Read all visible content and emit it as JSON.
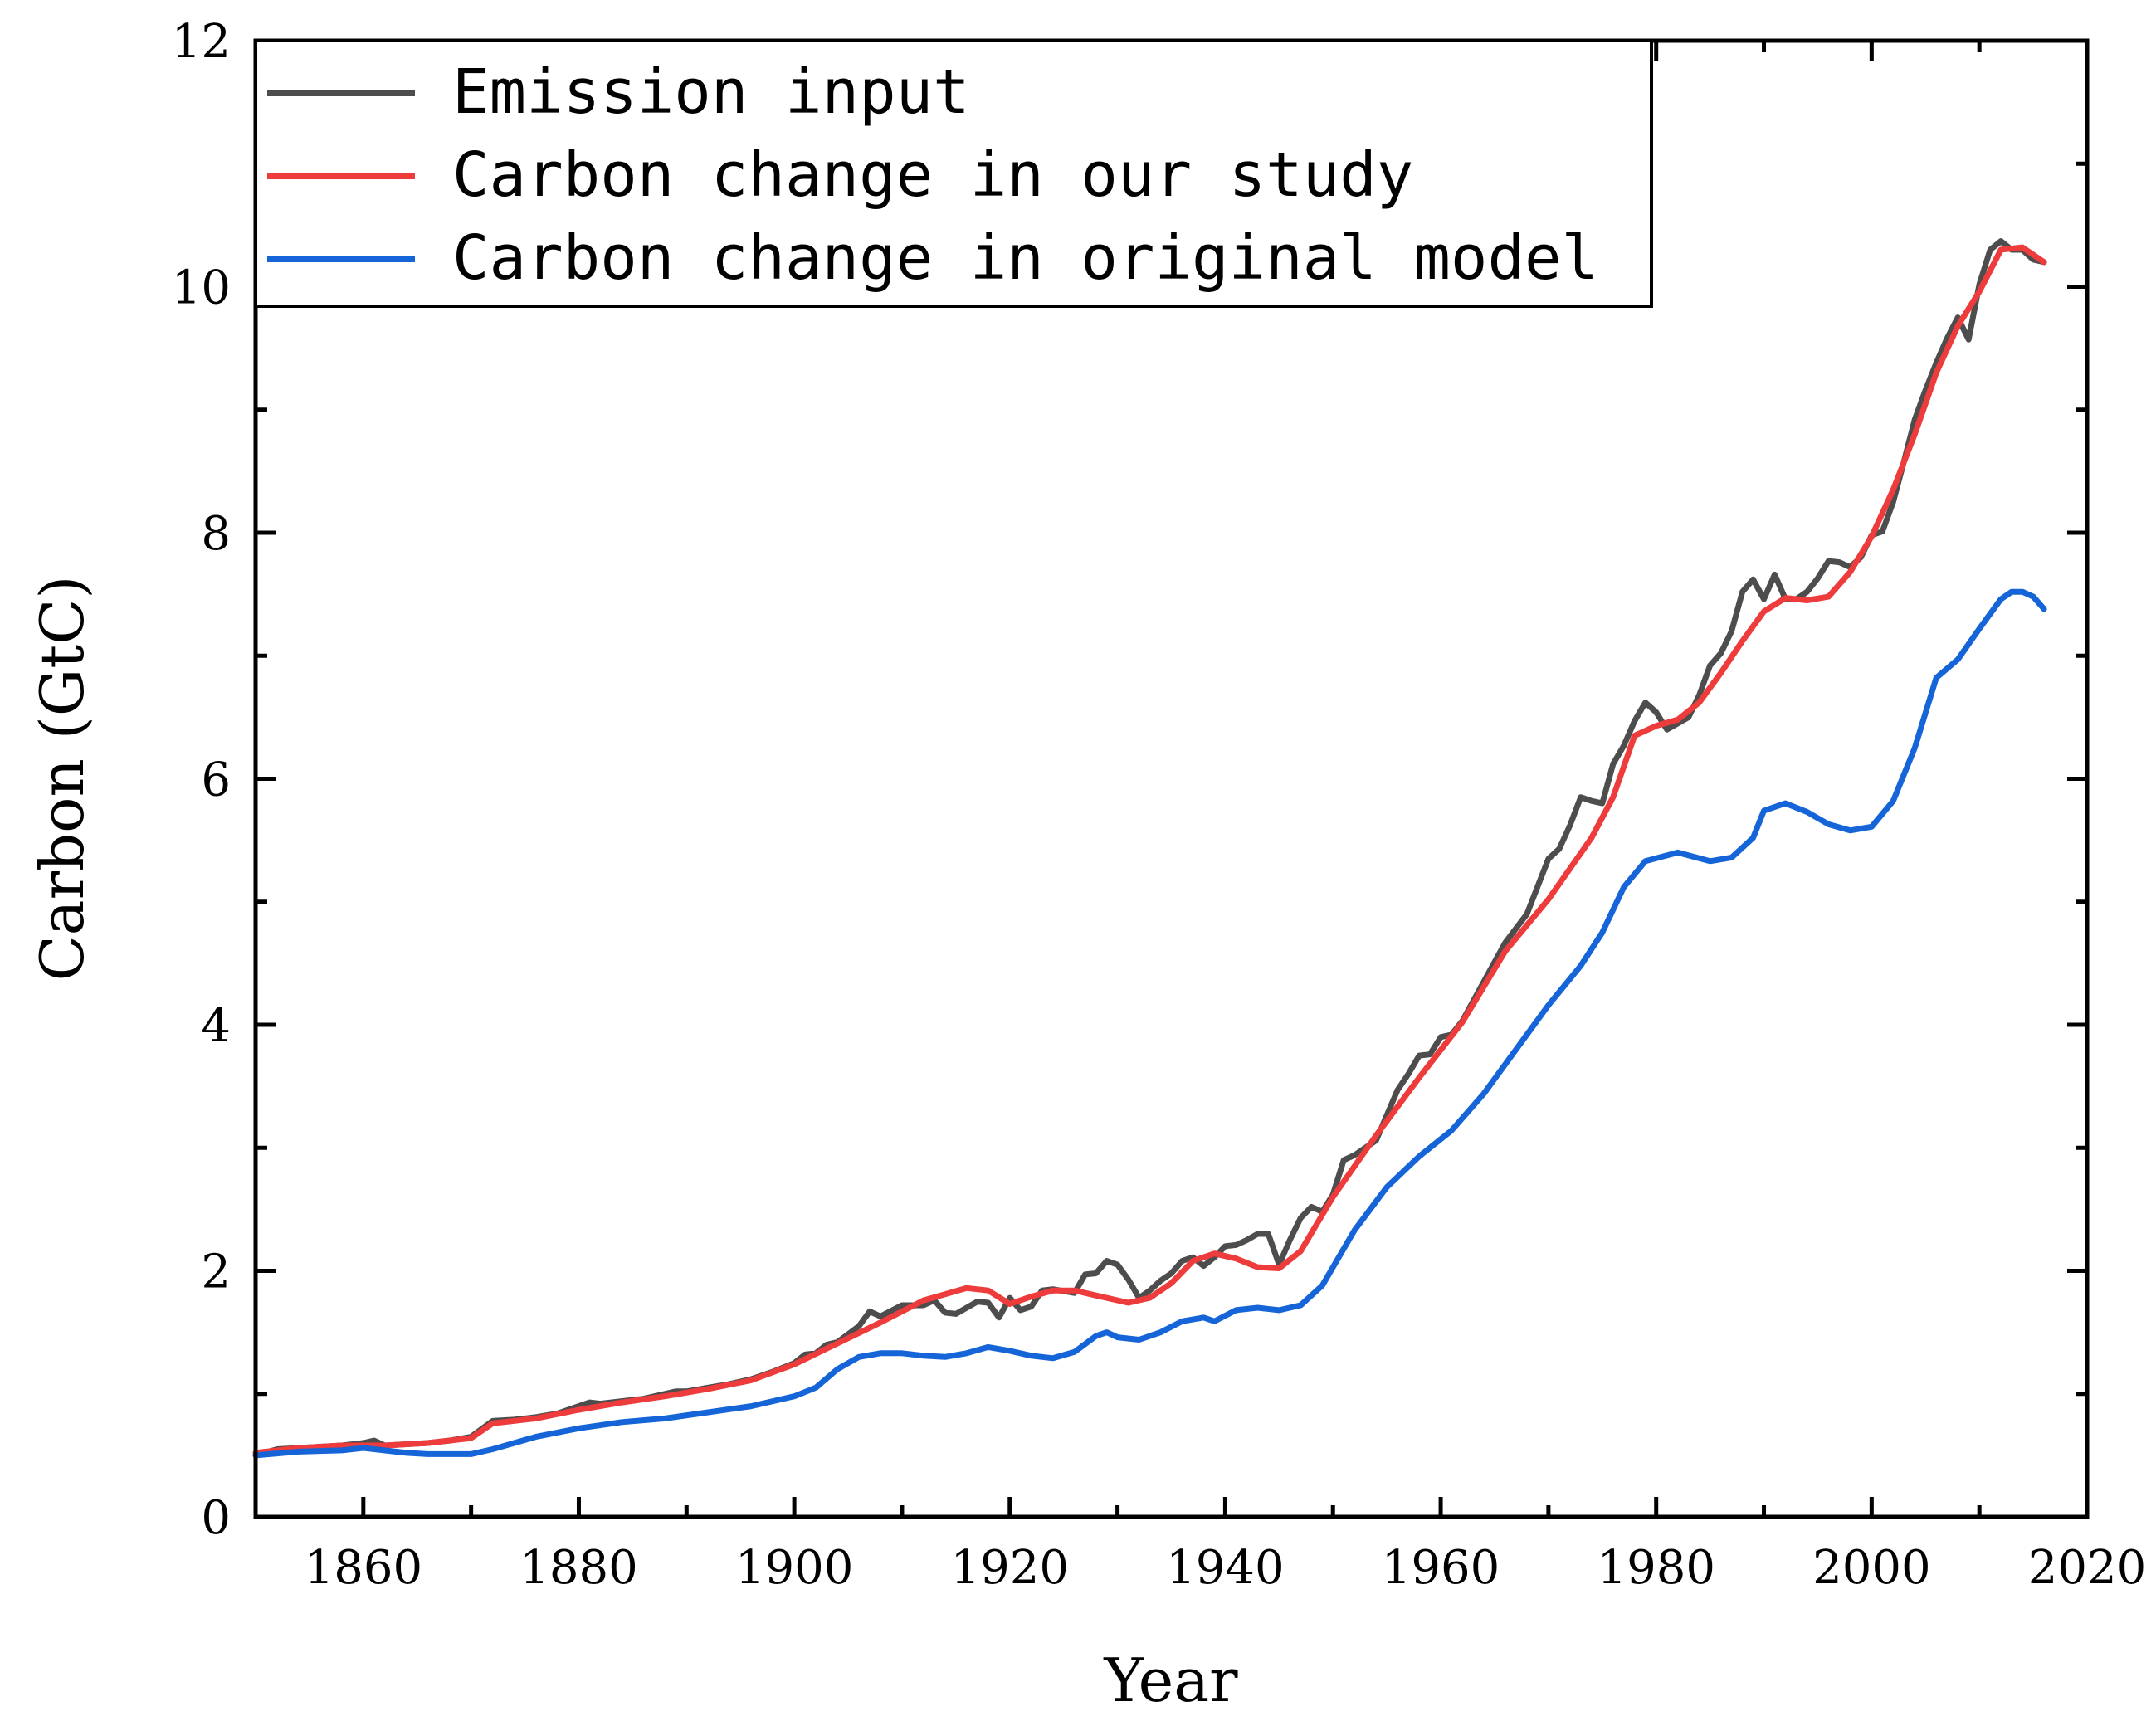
{
  "chart_data": {
    "type": "line",
    "xlabel": "Year",
    "ylabel": "Carbon (GtC)",
    "xlim": [
      1850,
      2020
    ],
    "ylim": [
      0,
      12
    ],
    "x_ticks": [
      1860,
      1880,
      1900,
      1920,
      1940,
      1960,
      1980,
      2000,
      2020
    ],
    "x_tick_labels": [
      "1860",
      "1880",
      "1900",
      "1920",
      "1940",
      "1960",
      "1980",
      "2000",
      "2020"
    ],
    "y_ticks": [
      0,
      2,
      4,
      6,
      8,
      10,
      12
    ],
    "y_tick_labels": [
      "0",
      "2",
      "4",
      "6",
      "8",
      "10",
      "12"
    ],
    "grid": false,
    "legend_position": "top-left",
    "series": [
      {
        "name": "Emission input",
        "color": "#4d4d4d",
        "points": [
          [
            1850,
            0.5
          ],
          [
            1852,
            0.55
          ],
          [
            1854,
            0.56
          ],
          [
            1856,
            0.57
          ],
          [
            1858,
            0.58
          ],
          [
            1860,
            0.6
          ],
          [
            1861,
            0.62
          ],
          [
            1862,
            0.58
          ],
          [
            1864,
            0.59
          ],
          [
            1866,
            0.6
          ],
          [
            1868,
            0.62
          ],
          [
            1870,
            0.65
          ],
          [
            1872,
            0.78
          ],
          [
            1874,
            0.79
          ],
          [
            1876,
            0.81
          ],
          [
            1878,
            0.84
          ],
          [
            1880,
            0.9
          ],
          [
            1881,
            0.93
          ],
          [
            1882,
            0.92
          ],
          [
            1884,
            0.94
          ],
          [
            1886,
            0.96
          ],
          [
            1888,
            1.0
          ],
          [
            1889,
            1.02
          ],
          [
            1890,
            1.02
          ],
          [
            1892,
            1.05
          ],
          [
            1894,
            1.08
          ],
          [
            1896,
            1.12
          ],
          [
            1898,
            1.18
          ],
          [
            1900,
            1.25
          ],
          [
            1901,
            1.32
          ],
          [
            1902,
            1.33
          ],
          [
            1903,
            1.4
          ],
          [
            1904,
            1.42
          ],
          [
            1906,
            1.55
          ],
          [
            1907,
            1.67
          ],
          [
            1908,
            1.63
          ],
          [
            1910,
            1.72
          ],
          [
            1912,
            1.72
          ],
          [
            1913,
            1.76
          ],
          [
            1914,
            1.66
          ],
          [
            1915,
            1.65
          ],
          [
            1917,
            1.75
          ],
          [
            1918,
            1.74
          ],
          [
            1919,
            1.62
          ],
          [
            1920,
            1.78
          ],
          [
            1921,
            1.68
          ],
          [
            1922,
            1.71
          ],
          [
            1923,
            1.84
          ],
          [
            1924,
            1.85
          ],
          [
            1926,
            1.82
          ],
          [
            1927,
            1.97
          ],
          [
            1928,
            1.98
          ],
          [
            1929,
            2.08
          ],
          [
            1930,
            2.05
          ],
          [
            1931,
            1.93
          ],
          [
            1932,
            1.78
          ],
          [
            1933,
            1.84
          ],
          [
            1934,
            1.92
          ],
          [
            1935,
            1.98
          ],
          [
            1936,
            2.08
          ],
          [
            1937,
            2.11
          ],
          [
            1938,
            2.04
          ],
          [
            1939,
            2.11
          ],
          [
            1940,
            2.2
          ],
          [
            1941,
            2.21
          ],
          [
            1942,
            2.25
          ],
          [
            1943,
            2.3
          ],
          [
            1944,
            2.3
          ],
          [
            1945,
            2.05
          ],
          [
            1946,
            2.25
          ],
          [
            1947,
            2.43
          ],
          [
            1948,
            2.52
          ],
          [
            1949,
            2.48
          ],
          [
            1950,
            2.62
          ],
          [
            1951,
            2.9
          ],
          [
            1952,
            2.94
          ],
          [
            1953,
            3.0
          ],
          [
            1954,
            3.06
          ],
          [
            1956,
            3.47
          ],
          [
            1957,
            3.6
          ],
          [
            1958,
            3.75
          ],
          [
            1959,
            3.76
          ],
          [
            1960,
            3.9
          ],
          [
            1961,
            3.92
          ],
          [
            1962,
            4.03
          ],
          [
            1964,
            4.35
          ],
          [
            1966,
            4.67
          ],
          [
            1968,
            4.9
          ],
          [
            1970,
            5.35
          ],
          [
            1971,
            5.43
          ],
          [
            1972,
            5.62
          ],
          [
            1973,
            5.85
          ],
          [
            1974,
            5.82
          ],
          [
            1975,
            5.8
          ],
          [
            1976,
            6.12
          ],
          [
            1977,
            6.27
          ],
          [
            1978,
            6.47
          ],
          [
            1979,
            6.62
          ],
          [
            1980,
            6.54
          ],
          [
            1981,
            6.4
          ],
          [
            1982,
            6.45
          ],
          [
            1983,
            6.5
          ],
          [
            1984,
            6.68
          ],
          [
            1985,
            6.92
          ],
          [
            1986,
            7.02
          ],
          [
            1987,
            7.2
          ],
          [
            1988,
            7.52
          ],
          [
            1989,
            7.62
          ],
          [
            1990,
            7.46
          ],
          [
            1991,
            7.66
          ],
          [
            1992,
            7.46
          ],
          [
            1993,
            7.46
          ],
          [
            1994,
            7.52
          ],
          [
            1995,
            7.63
          ],
          [
            1996,
            7.77
          ],
          [
            1997,
            7.76
          ],
          [
            1998,
            7.72
          ],
          [
            1999,
            7.8
          ],
          [
            2000,
            7.98
          ],
          [
            2001,
            8.01
          ],
          [
            2002,
            8.25
          ],
          [
            2003,
            8.58
          ],
          [
            2004,
            8.92
          ],
          [
            2005,
            9.16
          ],
          [
            2006,
            9.38
          ],
          [
            2007,
            9.58
          ],
          [
            2008,
            9.75
          ],
          [
            2009,
            9.57
          ],
          [
            2010,
            10.02
          ],
          [
            2011,
            10.3
          ],
          [
            2012,
            10.37
          ],
          [
            2013,
            10.3
          ],
          [
            2014,
            10.3
          ],
          [
            2015,
            10.22
          ],
          [
            2016,
            10.2
          ]
        ]
      },
      {
        "name": "Carbon change in our study",
        "color": "#ee3b3b",
        "points": [
          [
            1850,
            0.52
          ],
          [
            1854,
            0.56
          ],
          [
            1858,
            0.58
          ],
          [
            1862,
            0.58
          ],
          [
            1866,
            0.6
          ],
          [
            1870,
            0.64
          ],
          [
            1872,
            0.76
          ],
          [
            1876,
            0.8
          ],
          [
            1880,
            0.87
          ],
          [
            1884,
            0.93
          ],
          [
            1888,
            0.98
          ],
          [
            1892,
            1.04
          ],
          [
            1896,
            1.11
          ],
          [
            1900,
            1.24
          ],
          [
            1904,
            1.41
          ],
          [
            1908,
            1.58
          ],
          [
            1912,
            1.76
          ],
          [
            1916,
            1.86
          ],
          [
            1918,
            1.84
          ],
          [
            1920,
            1.73
          ],
          [
            1922,
            1.79
          ],
          [
            1924,
            1.84
          ],
          [
            1926,
            1.84
          ],
          [
            1928,
            1.8
          ],
          [
            1931,
            1.74
          ],
          [
            1933,
            1.78
          ],
          [
            1935,
            1.9
          ],
          [
            1937,
            2.08
          ],
          [
            1939,
            2.14
          ],
          [
            1941,
            2.1
          ],
          [
            1943,
            2.03
          ],
          [
            1945,
            2.02
          ],
          [
            1947,
            2.16
          ],
          [
            1950,
            2.6
          ],
          [
            1954,
            3.1
          ],
          [
            1958,
            3.57
          ],
          [
            1962,
            4.02
          ],
          [
            1966,
            4.6
          ],
          [
            1970,
            5.02
          ],
          [
            1974,
            5.52
          ],
          [
            1976,
            5.85
          ],
          [
            1978,
            6.35
          ],
          [
            1980,
            6.43
          ],
          [
            1982,
            6.48
          ],
          [
            1984,
            6.62
          ],
          [
            1986,
            6.86
          ],
          [
            1988,
            7.12
          ],
          [
            1990,
            7.36
          ],
          [
            1992,
            7.47
          ],
          [
            1994,
            7.45
          ],
          [
            1996,
            7.48
          ],
          [
            1998,
            7.68
          ],
          [
            2000,
            7.97
          ],
          [
            2002,
            8.35
          ],
          [
            2004,
            8.8
          ],
          [
            2006,
            9.3
          ],
          [
            2008,
            9.68
          ],
          [
            2010,
            9.96
          ],
          [
            2012,
            10.3
          ],
          [
            2014,
            10.32
          ],
          [
            2016,
            10.2
          ]
        ]
      },
      {
        "name": "Carbon change in original model",
        "color": "#1665d8",
        "points": [
          [
            1850,
            0.5
          ],
          [
            1854,
            0.53
          ],
          [
            1858,
            0.54
          ],
          [
            1860,
            0.56
          ],
          [
            1864,
            0.52
          ],
          [
            1866,
            0.51
          ],
          [
            1868,
            0.51
          ],
          [
            1870,
            0.51
          ],
          [
            1872,
            0.55
          ],
          [
            1876,
            0.65
          ],
          [
            1880,
            0.72
          ],
          [
            1884,
            0.77
          ],
          [
            1888,
            0.8
          ],
          [
            1892,
            0.85
          ],
          [
            1896,
            0.9
          ],
          [
            1900,
            0.98
          ],
          [
            1902,
            1.05
          ],
          [
            1904,
            1.2
          ],
          [
            1906,
            1.3
          ],
          [
            1908,
            1.33
          ],
          [
            1910,
            1.33
          ],
          [
            1912,
            1.31
          ],
          [
            1914,
            1.3
          ],
          [
            1916,
            1.33
          ],
          [
            1918,
            1.38
          ],
          [
            1920,
            1.35
          ],
          [
            1922,
            1.31
          ],
          [
            1924,
            1.29
          ],
          [
            1926,
            1.34
          ],
          [
            1928,
            1.47
          ],
          [
            1929,
            1.5
          ],
          [
            1930,
            1.46
          ],
          [
            1932,
            1.44
          ],
          [
            1934,
            1.5
          ],
          [
            1936,
            1.59
          ],
          [
            1938,
            1.62
          ],
          [
            1939,
            1.59
          ],
          [
            1941,
            1.68
          ],
          [
            1943,
            1.7
          ],
          [
            1945,
            1.68
          ],
          [
            1947,
            1.72
          ],
          [
            1949,
            1.88
          ],
          [
            1952,
            2.33
          ],
          [
            1955,
            2.68
          ],
          [
            1958,
            2.93
          ],
          [
            1961,
            3.14
          ],
          [
            1964,
            3.44
          ],
          [
            1967,
            3.8
          ],
          [
            1970,
            4.16
          ],
          [
            1973,
            4.48
          ],
          [
            1975,
            4.75
          ],
          [
            1977,
            5.12
          ],
          [
            1979,
            5.33
          ],
          [
            1982,
            5.4
          ],
          [
            1985,
            5.33
          ],
          [
            1987,
            5.36
          ],
          [
            1989,
            5.52
          ],
          [
            1990,
            5.74
          ],
          [
            1992,
            5.8
          ],
          [
            1994,
            5.73
          ],
          [
            1996,
            5.63
          ],
          [
            1998,
            5.58
          ],
          [
            2000,
            5.61
          ],
          [
            2002,
            5.82
          ],
          [
            2004,
            6.25
          ],
          [
            2006,
            6.82
          ],
          [
            2008,
            6.97
          ],
          [
            2010,
            7.22
          ],
          [
            2012,
            7.46
          ],
          [
            2013,
            7.52
          ],
          [
            2014,
            7.52
          ],
          [
            2015,
            7.48
          ],
          [
            2016,
            7.38
          ]
        ]
      }
    ]
  }
}
